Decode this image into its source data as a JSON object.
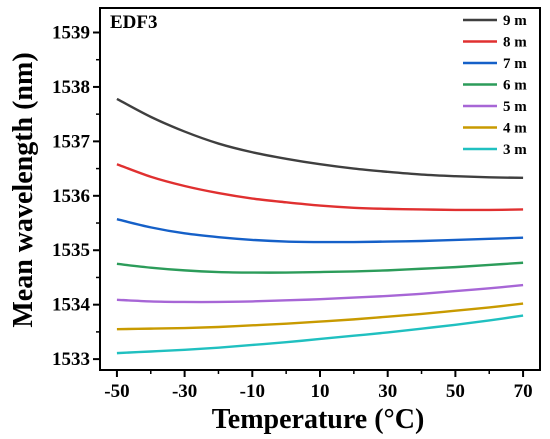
{
  "chart_data": {
    "type": "line",
    "panel_label": "EDF3",
    "xlabel": "Temperature (°C)",
    "ylabel": "Mean wavelength (nm)",
    "xlim": [
      -55,
      75
    ],
    "ylim": [
      1532.8,
      1539.45
    ],
    "xticks": [
      -50,
      -30,
      -10,
      10,
      30,
      50,
      70
    ],
    "yticks": [
      1533,
      1534,
      1535,
      1536,
      1537,
      1538,
      1539
    ],
    "grid": false,
    "legend_position": "top-right",
    "x": [
      -50,
      -40,
      -30,
      -20,
      -10,
      0,
      10,
      20,
      30,
      40,
      50,
      60,
      70
    ],
    "series": [
      {
        "name": "9 m",
        "color": "#3f3f3f",
        "values": [
          1537.78,
          1537.45,
          1537.18,
          1536.96,
          1536.8,
          1536.68,
          1536.58,
          1536.5,
          1536.44,
          1536.39,
          1536.36,
          1536.34,
          1536.33
        ]
      },
      {
        "name": "8 m",
        "color": "#e03030",
        "values": [
          1536.58,
          1536.35,
          1536.18,
          1536.05,
          1535.95,
          1535.88,
          1535.82,
          1535.78,
          1535.76,
          1535.75,
          1535.74,
          1535.74,
          1535.75
        ]
      },
      {
        "name": "7 m",
        "color": "#1560c8",
        "values": [
          1535.57,
          1535.42,
          1535.31,
          1535.24,
          1535.19,
          1535.16,
          1535.15,
          1535.15,
          1535.16,
          1535.17,
          1535.19,
          1535.21,
          1535.23
        ]
      },
      {
        "name": "6 m",
        "color": "#2c9c5a",
        "values": [
          1534.75,
          1534.68,
          1534.63,
          1534.6,
          1534.59,
          1534.59,
          1534.6,
          1534.61,
          1534.63,
          1534.66,
          1534.69,
          1534.73,
          1534.77
        ]
      },
      {
        "name": "5 m",
        "color": "#a766d6",
        "values": [
          1534.09,
          1534.06,
          1534.05,
          1534.05,
          1534.06,
          1534.08,
          1534.1,
          1534.13,
          1534.16,
          1534.2,
          1534.25,
          1534.3,
          1534.36
        ]
      },
      {
        "name": "4 m",
        "color": "#c89a00",
        "values": [
          1533.55,
          1533.56,
          1533.57,
          1533.59,
          1533.62,
          1533.65,
          1533.69,
          1533.73,
          1533.78,
          1533.83,
          1533.89,
          1533.95,
          1534.02
        ]
      },
      {
        "name": "3 m",
        "color": "#20c0c0",
        "values": [
          1533.11,
          1533.14,
          1533.17,
          1533.21,
          1533.26,
          1533.31,
          1533.37,
          1533.43,
          1533.49,
          1533.56,
          1533.63,
          1533.71,
          1533.8
        ]
      }
    ]
  }
}
